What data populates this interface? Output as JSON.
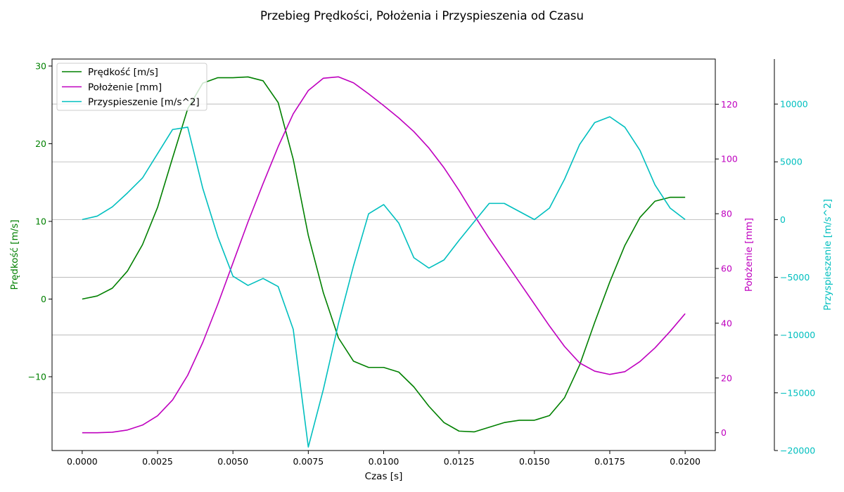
{
  "chart_data": {
    "type": "line",
    "title": "Przebieg Prędkości, Położenia i Przyspieszenia od Czasu",
    "xlabel": "Czas [s]",
    "x_ticks": [
      "0.0000",
      "0.0025",
      "0.0050",
      "0.0075",
      "0.0100",
      "0.0125",
      "0.0150",
      "0.0175",
      "0.0200"
    ],
    "xlim": [
      -0.001,
      0.021
    ],
    "grid": "horizontal",
    "legend_position": "upper-left",
    "axes": [
      {
        "id": "left",
        "label": "Prędkość [m/s]",
        "color": "#008000",
        "ylim": [
          -19.5,
          30.9
        ],
        "ticks": [
          -10,
          0,
          10,
          20,
          30
        ],
        "tick_labels": [
          "−10",
          "0",
          "10",
          "20",
          "30"
        ]
      },
      {
        "id": "right1",
        "label": "Położenie [mm]",
        "color": "#bf00bf",
        "ylim": [
          -6.5,
          136.5
        ],
        "ticks": [
          0,
          20,
          40,
          60,
          80,
          100,
          120
        ],
        "tick_labels": [
          "0",
          "20",
          "40",
          "60",
          "80",
          "100",
          "120"
        ]
      },
      {
        "id": "right2",
        "label": "Przyspieszenie [m/s^2]",
        "color": "#00bfbf",
        "ylim": [
          -20000,
          13900
        ],
        "ticks": [
          -20000,
          -15000,
          -10000,
          -5000,
          0,
          5000,
          10000
        ],
        "tick_labels": [
          "−20000",
          "−15000",
          "−10000",
          "−5000",
          "0",
          "5000",
          "10000"
        ]
      }
    ],
    "x": [
      0.0,
      0.0005,
      0.001,
      0.0015,
      0.002,
      0.0025,
      0.003,
      0.0035,
      0.004,
      0.0045,
      0.005,
      0.0055,
      0.006,
      0.0065,
      0.007,
      0.0075,
      0.008,
      0.0085,
      0.009,
      0.0095,
      0.01,
      0.0105,
      0.011,
      0.0115,
      0.012,
      0.0125,
      0.013,
      0.0135,
      0.014,
      0.0145,
      0.015,
      0.0155,
      0.016,
      0.0165,
      0.017,
      0.0175,
      0.018,
      0.0185,
      0.019,
      0.0195,
      0.02
    ],
    "series": [
      {
        "name": "Prędkość [m/s]",
        "axis": "left",
        "color": "#008000",
        "values": [
          0.0,
          0.4,
          1.4,
          3.6,
          7.0,
          11.8,
          18.2,
          24.5,
          27.8,
          28.5,
          28.5,
          28.6,
          28.1,
          25.3,
          18.0,
          8.2,
          0.8,
          -5.0,
          -8.0,
          -8.8,
          -8.8,
          -9.4,
          -11.3,
          -13.8,
          -15.9,
          -17.0,
          -17.1,
          -16.5,
          -15.9,
          -15.6,
          -15.6,
          -15.0,
          -12.7,
          -8.5,
          -3.0,
          2.2,
          6.9,
          10.5,
          12.6,
          13.1,
          13.1
        ]
      },
      {
        "name": "Położenie [mm]",
        "axis": "right1",
        "color": "#bf00bf",
        "values": [
          0.0,
          0.0,
          0.2,
          1.0,
          2.8,
          6.2,
          12.0,
          21.0,
          33.0,
          47.0,
          62.0,
          77.0,
          91.0,
          104.5,
          116.5,
          125.0,
          129.5,
          130.0,
          127.8,
          123.8,
          119.5,
          115.0,
          110.0,
          104.0,
          96.8,
          88.5,
          79.5,
          71.0,
          63.0,
          55.0,
          47.0,
          39.0,
          31.5,
          25.5,
          22.5,
          21.3,
          22.3,
          26.0,
          31.0,
          37.0,
          43.5
        ]
      },
      {
        "name": "Przyspieszenie [m/s^2]",
        "axis": "right2",
        "color": "#00bfbf",
        "values": [
          0,
          300,
          1100,
          2300,
          3600,
          5700,
          7800,
          8000,
          2700,
          -1500,
          -4900,
          -5700,
          -5100,
          -5800,
          -9500,
          -19700,
          -14700,
          -9000,
          -4000,
          500,
          1300,
          -300,
          -3300,
          -4200,
          -3500,
          -1800,
          -200,
          1400,
          1400,
          700,
          0,
          1000,
          3500,
          6500,
          8400,
          8900,
          8000,
          6000,
          3000,
          1000,
          0
        ]
      }
    ]
  }
}
